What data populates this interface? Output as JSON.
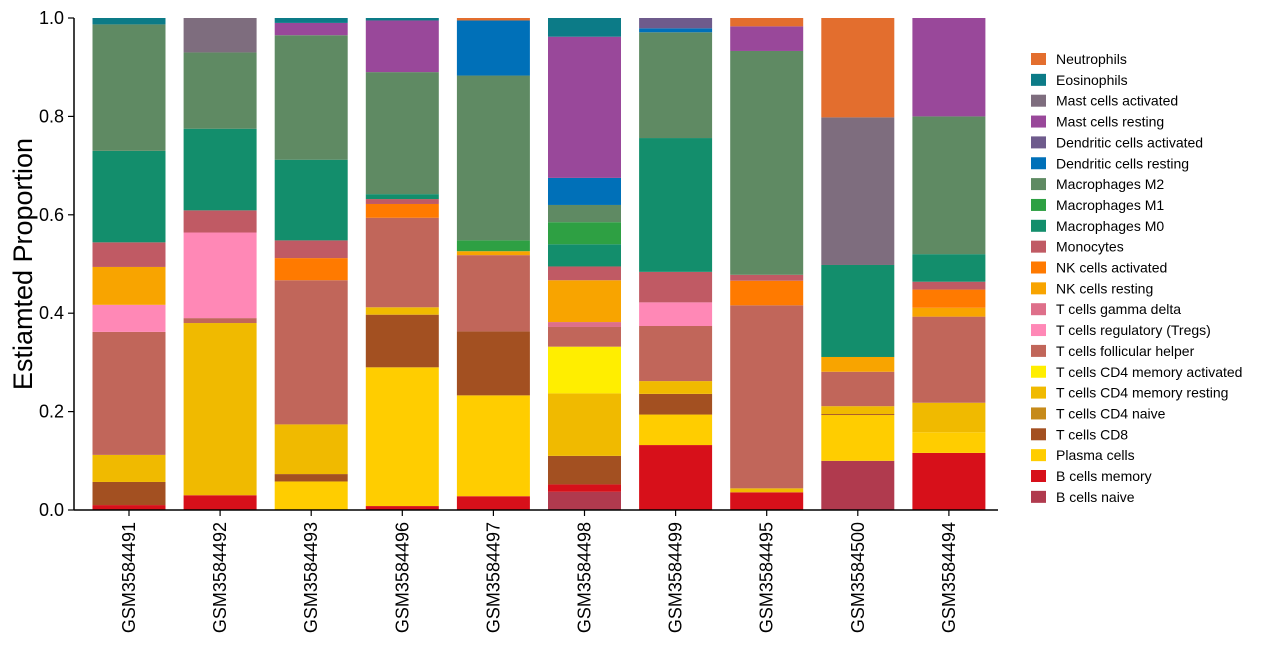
{
  "chart_data": {
    "type": "stacked-bar",
    "title": "",
    "xlabel": "",
    "ylabel": "Estiamted Proportion",
    "ylim": [
      0,
      1
    ],
    "yticks": [
      "0.0",
      "0.2",
      "0.4",
      "0.6",
      "0.8",
      "1.0"
    ],
    "categories": [
      "GSM3584491",
      "GSM3584492",
      "GSM3584493",
      "GSM3584496",
      "GSM3584497",
      "GSM3584498",
      "GSM3584499",
      "GSM3584495",
      "GSM3584500",
      "GSM3584494"
    ],
    "legend_position": "right",
    "series": [
      {
        "name": "B cells naive",
        "color": "#B03A4E",
        "values": [
          0.0,
          0.0,
          0.0,
          0.0,
          0.0,
          0.037,
          0.0,
          0.0,
          0.1,
          0.0
        ]
      },
      {
        "name": "B cells memory",
        "color": "#D7101A",
        "values": [
          0.01,
          0.03,
          0.0,
          0.008,
          0.028,
          0.015,
          0.132,
          0.036,
          0.0,
          0.116
        ]
      },
      {
        "name": "Plasma cells",
        "color": "#FFCD00",
        "values": [
          0.0,
          0.0,
          0.058,
          0.282,
          0.205,
          0.0,
          0.062,
          0.0,
          0.093,
          0.042
        ]
      },
      {
        "name": "T cells CD8",
        "color": "#A35021",
        "values": [
          0.047,
          0.0,
          0.015,
          0.107,
          0.13,
          0.058,
          0.042,
          0.0,
          0.002,
          0.0
        ]
      },
      {
        "name": "T cells CD4 naive",
        "color": "#C68A1A",
        "values": [
          0.0,
          0.0,
          0.0,
          0.0,
          0.0,
          0.0,
          0.0,
          0.0,
          0.0,
          0.0
        ]
      },
      {
        "name": "T cells CD4 memory resting",
        "color": "#F0BA00",
        "values": [
          0.055,
          0.35,
          0.101,
          0.015,
          0.0,
          0.127,
          0.026,
          0.008,
          0.016,
          0.06
        ]
      },
      {
        "name": "T cells CD4 memory activated",
        "color": "#FFEE00",
        "values": [
          0.0,
          0.0,
          0.0,
          0.0,
          0.0,
          0.095,
          0.0,
          0.0,
          0.0,
          0.0
        ]
      },
      {
        "name": "T cells follicular helper",
        "color": "#C1665A",
        "values": [
          0.25,
          0.01,
          0.293,
          0.182,
          0.155,
          0.04,
          0.112,
          0.372,
          0.07,
          0.175
        ]
      },
      {
        "name": "T cells regulatory (Tregs)",
        "color": "#FF88B6",
        "values": [
          0.055,
          0.174,
          0.0,
          0.0,
          0.0,
          0.0,
          0.048,
          0.0,
          0.0,
          0.0
        ]
      },
      {
        "name": "T cells gamma delta",
        "color": "#DE6F8A",
        "values": [
          0.0,
          0.0,
          0.0,
          0.0,
          0.0,
          0.01,
          0.0,
          0.0,
          0.0,
          0.0
        ]
      },
      {
        "name": "NK cells resting",
        "color": "#F8A400",
        "values": [
          0.077,
          0.0,
          0.0,
          0.0,
          0.008,
          0.085,
          0.0,
          0.0,
          0.03,
          0.018
        ]
      },
      {
        "name": "NK cells activated",
        "color": "#FF7A00",
        "values": [
          0.0,
          0.0,
          0.045,
          0.028,
          0.0,
          0.0,
          0.0,
          0.05,
          0.0,
          0.037
        ]
      },
      {
        "name": "Monocytes",
        "color": "#C05A64",
        "values": [
          0.05,
          0.045,
          0.036,
          0.01,
          0.0,
          0.028,
          0.062,
          0.012,
          0.0,
          0.016
        ]
      },
      {
        "name": "Macrophages M0",
        "color": "#138E6C",
        "values": [
          0.186,
          0.166,
          0.164,
          0.01,
          0.0,
          0.045,
          0.272,
          0.0,
          0.187,
          0.056
        ]
      },
      {
        "name": "Macrophages M1",
        "color": "#2EA043",
        "values": [
          0.0,
          0.0,
          0.0,
          0.0,
          0.022,
          0.045,
          0.0,
          0.0,
          0.0,
          0.0
        ]
      },
      {
        "name": "Macrophages M2",
        "color": "#5F8A63",
        "values": [
          0.257,
          0.155,
          0.253,
          0.248,
          0.335,
          0.035,
          0.215,
          0.455,
          0.0,
          0.28
        ]
      },
      {
        "name": "Dendritic cells resting",
        "color": "#0070B8",
        "values": [
          0.0,
          0.0,
          0.0,
          0.0,
          0.112,
          0.055,
          0.008,
          0.0,
          0.0,
          0.0
        ]
      },
      {
        "name": "Dendritic cells activated",
        "color": "#6E5B8C",
        "values": [
          0.0,
          0.0,
          0.0,
          0.0,
          0.0,
          0.0,
          0.021,
          0.0,
          0.0,
          0.0
        ]
      },
      {
        "name": "Mast cells resting",
        "color": "#99489A",
        "values": [
          0.0,
          0.0,
          0.025,
          0.105,
          0.0,
          0.287,
          0.0,
          0.05,
          0.0,
          0.2
        ]
      },
      {
        "name": "Mast cells activated",
        "color": "#7E6D7E",
        "values": [
          0.0,
          0.07,
          0.0,
          0.0,
          0.0,
          0.0,
          0.0,
          0.0,
          0.3,
          0.0
        ]
      },
      {
        "name": "Eosinophils",
        "color": "#0C7B87",
        "values": [
          0.013,
          0.0,
          0.01,
          0.005,
          0.0,
          0.038,
          0.0,
          0.0,
          0.0,
          0.0
        ]
      },
      {
        "name": "Neutrophils",
        "color": "#E36E2E",
        "values": [
          0.0,
          0.0,
          0.0,
          0.0,
          0.005,
          0.0,
          0.0,
          0.017,
          0.202,
          0.0
        ]
      }
    ]
  }
}
